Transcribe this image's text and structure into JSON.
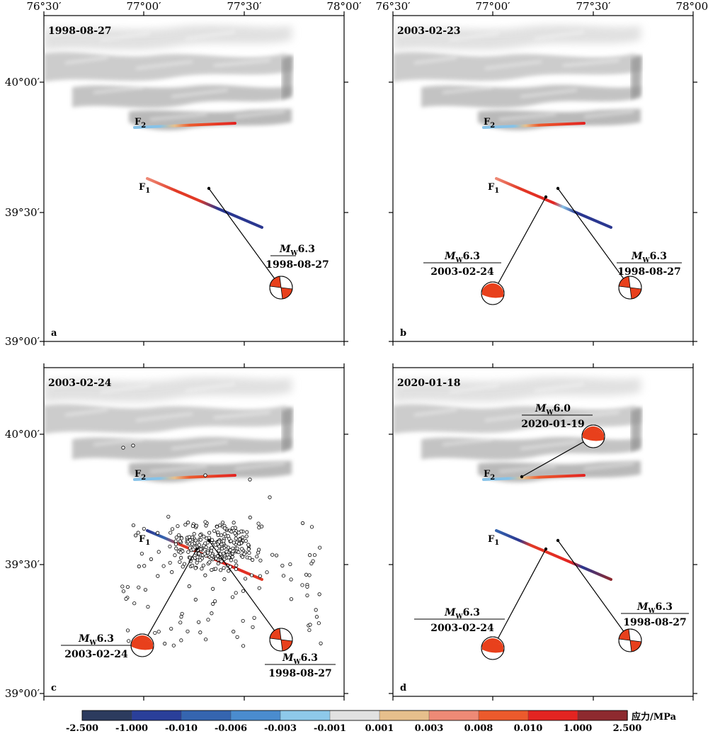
{
  "map": {
    "lon_ticks": [
      "76°30′",
      "77°00′",
      "77°30′",
      "78°00′"
    ],
    "lat_ticks": [
      "40°00′",
      "39°30′",
      "39°00′"
    ],
    "fault_labels": {
      "f1": "F",
      "f1_sub": "1",
      "f2": "F",
      "f2_sub": "2"
    },
    "mag_prefix": "M",
    "mag_sub": "W"
  },
  "panels": [
    {
      "id": "a",
      "letter": "a",
      "date": "1998-08-27",
      "events": [
        {
          "mag": "6.3",
          "date": "1998-08-27",
          "mechanism": "strike-slip"
        }
      ],
      "aftershocks": false
    },
    {
      "id": "b",
      "letter": "b",
      "date": "2003-02-23",
      "events": [
        {
          "mag": "6.3",
          "date": "2003-02-24",
          "mechanism": "thrust"
        },
        {
          "mag": "6.3",
          "date": "1998-08-27",
          "mechanism": "strike-slip"
        }
      ],
      "aftershocks": false
    },
    {
      "id": "c",
      "letter": "c",
      "date": "2003-02-24",
      "events": [
        {
          "mag": "6.3",
          "date": "2003-02-24",
          "mechanism": "thrust"
        },
        {
          "mag": "6.3",
          "date": "1998-08-27",
          "mechanism": "strike-slip"
        }
      ],
      "aftershocks": true
    },
    {
      "id": "d",
      "letter": "d",
      "date": "2020-01-18",
      "events": [
        {
          "mag": "6.0",
          "date": "2020-01-19",
          "mechanism": "thrust"
        },
        {
          "mag": "6.3",
          "date": "2003-02-24",
          "mechanism": "thrust"
        },
        {
          "mag": "6.3",
          "date": "1998-08-27",
          "mechanism": "strike-slip"
        }
      ],
      "aftershocks": false
    }
  ],
  "colorbar": {
    "unit_label": "应力/MPa",
    "tick_labels": [
      "-2.500",
      "-1.000",
      "-0.010",
      "-0.006",
      "-0.003",
      "-0.001",
      "0.001",
      "0.003",
      "0.008",
      "0.010",
      "1.000",
      "2.500"
    ],
    "colors": [
      "#2c3b5e",
      "#2a3f9a",
      "#3565b0",
      "#4a8ccf",
      "#8ec9ea",
      "#e1e1e1",
      "#e6bf8c",
      "#ee8a76",
      "#ec5a2c",
      "#e32421",
      "#8e2a2f"
    ]
  },
  "styles": {
    "beachball_color": "#e8401c",
    "positive_stress": "#e23a26",
    "negative_stress": "#2a3790",
    "light_negative": "#86c2e8"
  }
}
